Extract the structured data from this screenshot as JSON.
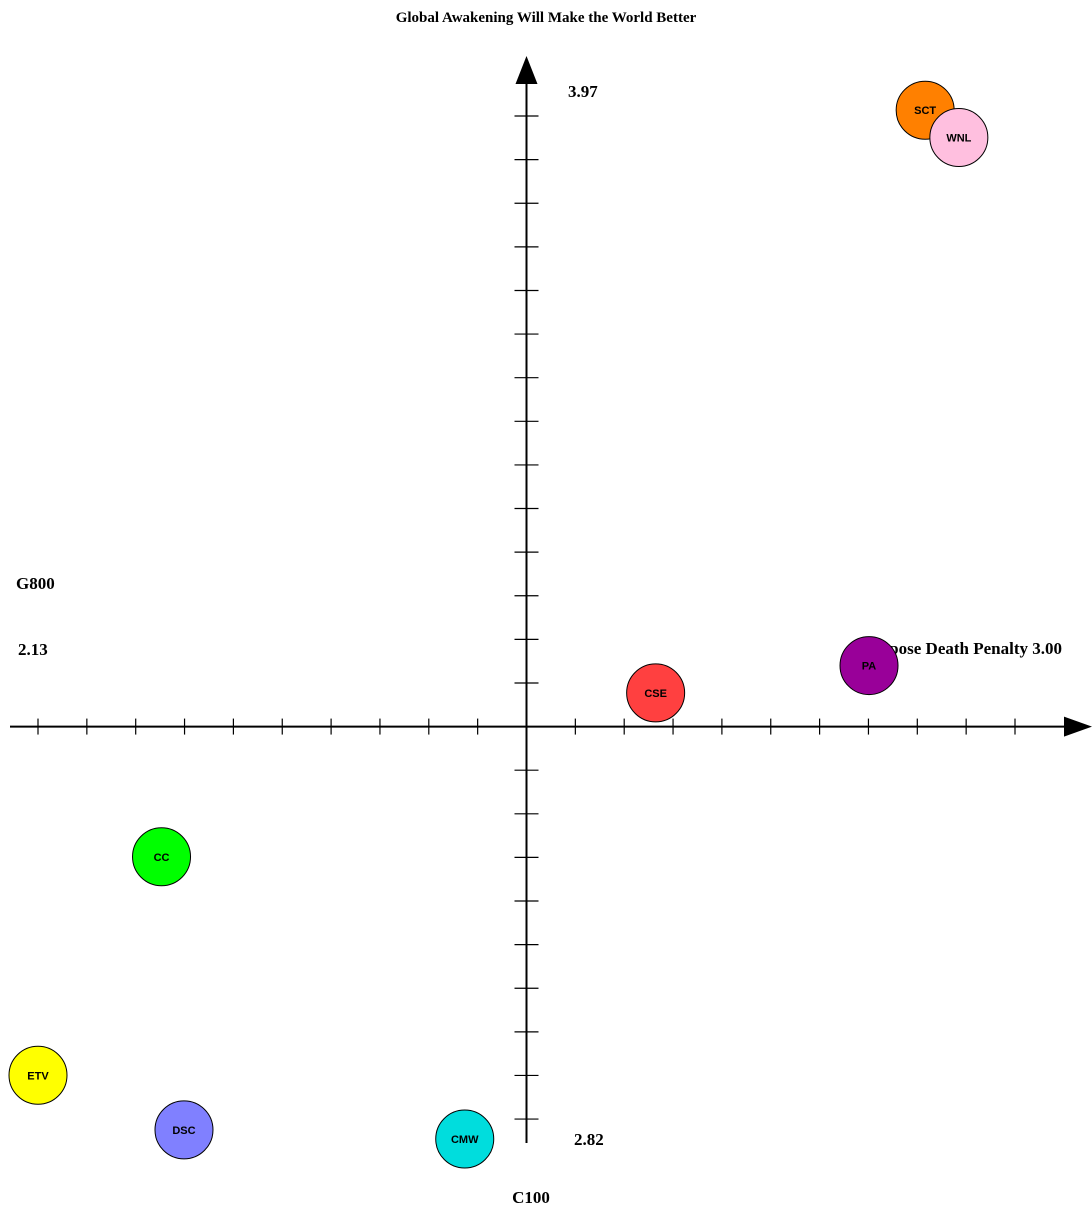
{
  "chart_data": {
    "type": "scatter",
    "title": "Global Awakening Will Make the World Better",
    "x_axis": {
      "label": "Oppose Death Penalty",
      "min_label": "2.13",
      "max_label": "3.00",
      "min": 2.13,
      "max": 3.0,
      "cross": 2.565,
      "tick_step": 0.0435
    },
    "y_axis": {
      "max_label": "3.97",
      "min_label": "2.82",
      "min": 2.82,
      "max": 3.97,
      "cross": 3.273,
      "tick_step": 0.0479
    },
    "left_label": "G800",
    "bottom_label": "C100",
    "points": [
      {
        "name": "SCT",
        "x": 2.92,
        "y": 3.95,
        "color": "#ff8000"
      },
      {
        "name": "WNL",
        "x": 2.95,
        "y": 3.92,
        "color": "#ffbfdf"
      },
      {
        "name": "PA",
        "x": 2.87,
        "y": 3.34,
        "color": "#990099"
      },
      {
        "name": "CSE",
        "x": 2.68,
        "y": 3.31,
        "color": "#ff4040"
      },
      {
        "name": "CC",
        "x": 2.24,
        "y": 3.13,
        "color": "#00ff00"
      },
      {
        "name": "ETV",
        "x": 2.13,
        "y": 2.89,
        "color": "#ffff00"
      },
      {
        "name": "DSC",
        "x": 2.26,
        "y": 2.83,
        "color": "#8080ff"
      },
      {
        "name": "CMW",
        "x": 2.51,
        "y": 2.82,
        "color": "#00dddd"
      }
    ]
  }
}
